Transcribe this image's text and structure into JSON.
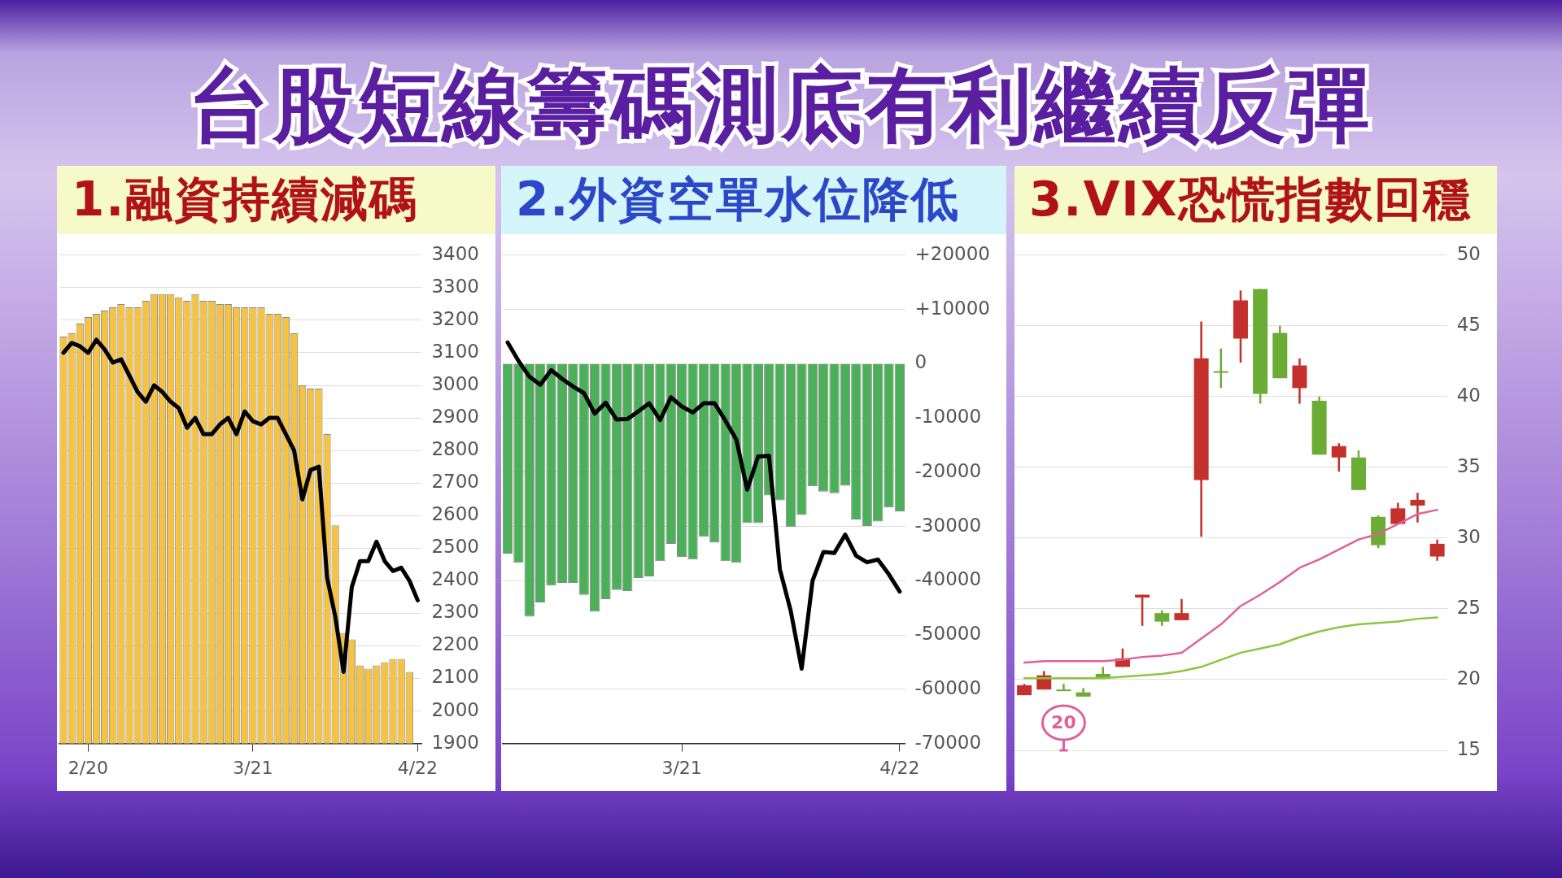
{
  "chart_data": [
    {
      "type": "other",
      "title": "台股短線籌碼測底有利繼續反彈"
    },
    {
      "type": "bar",
      "title": "1.融資持續減碼",
      "categories": [
        null,
        null,
        null,
        "2/20",
        null,
        null,
        null,
        null,
        null,
        null,
        null,
        null,
        null,
        null,
        null,
        null,
        null,
        null,
        null,
        null,
        null,
        null,
        null,
        "3/21",
        null,
        null,
        null,
        null,
        null,
        null,
        null,
        null,
        null,
        null,
        null,
        null,
        null,
        null,
        null,
        null,
        null,
        null,
        null,
        "4/22"
      ],
      "series": [
        {
          "type": "bar",
          "color": "#f5c242",
          "values": [
            3150,
            3160,
            3190,
            3210,
            3220,
            3230,
            3240,
            3250,
            3240,
            3240,
            3260,
            3280,
            3280,
            3280,
            3270,
            3260,
            3280,
            3260,
            3260,
            3250,
            3250,
            3240,
            3240,
            3240,
            3240,
            3220,
            3220,
            3210,
            3160,
            3000,
            2990,
            2990,
            2850,
            2570,
            2240,
            2220,
            2140,
            2130,
            2140,
            2150,
            2160,
            2160,
            2120,
            null
          ]
        },
        {
          "type": "line",
          "color": "#000000",
          "values": [
            3100,
            3130,
            3120,
            3100,
            3140,
            3110,
            3070,
            3080,
            3030,
            2980,
            2950,
            3000,
            2980,
            2950,
            2930,
            2870,
            2900,
            2850,
            2850,
            2880,
            2900,
            2850,
            2920,
            2890,
            2880,
            2900,
            2900,
            2850,
            2800,
            2650,
            2740,
            2750,
            2410,
            2290,
            2120,
            2380,
            2460,
            2460,
            2520,
            2460,
            2430,
            2440,
            2400,
            2340
          ]
        }
      ],
      "ylim": [
        1900,
        3400
      ],
      "yticks": [
        1900,
        2000,
        2100,
        2200,
        2300,
        2400,
        2500,
        2600,
        2700,
        2800,
        2900,
        3000,
        3100,
        3200,
        3300,
        3400
      ],
      "grid": "y"
    },
    {
      "type": "bar",
      "title": "2.外資空單水位降低",
      "categories": [
        null,
        null,
        null,
        null,
        null,
        null,
        null,
        null,
        null,
        null,
        null,
        null,
        null,
        null,
        null,
        null,
        "3/21",
        null,
        null,
        null,
        null,
        null,
        null,
        null,
        null,
        null,
        null,
        null,
        null,
        null,
        null,
        null,
        null,
        null,
        null,
        null,
        "4/22"
      ],
      "series": [
        {
          "type": "bar",
          "color": "#4caf5a",
          "values": [
            -35000,
            -36700,
            -46600,
            -44000,
            -40900,
            -40400,
            -40400,
            -42600,
            -45700,
            -43400,
            -41700,
            -41900,
            -39500,
            -39200,
            -36400,
            -33200,
            -35600,
            -36100,
            -31900,
            -33000,
            -36400,
            -36700,
            -29400,
            -29400,
            -24300,
            -25200,
            -30100,
            -27900,
            -22600,
            -23600,
            -23900,
            -22500,
            -28700,
            -29900,
            -29100,
            -26500,
            -27200
          ]
        },
        {
          "type": "line",
          "color": "#000000",
          "values": [
            3900,
            500,
            -2400,
            -3900,
            -1200,
            -2800,
            -4200,
            -5400,
            -9200,
            -7200,
            -10300,
            -10200,
            -8800,
            -7300,
            -10400,
            -6200,
            -7900,
            -9000,
            -7300,
            -7300,
            -10500,
            -14000,
            -23200,
            -17100,
            -17000,
            -37900,
            -45600,
            -56200,
            -40000,
            -34700,
            -34900,
            -31500,
            -35400,
            -36600,
            -36100,
            -38800,
            -42000
          ]
        }
      ],
      "ylim": [
        -70000,
        20000
      ],
      "yticks": [
        {
          "value": 20000,
          "label": "+20000"
        },
        {
          "value": 10000,
          "label": "+10000"
        },
        0,
        -10000,
        -20000,
        -30000,
        -40000,
        -50000,
        -60000,
        -70000
      ],
      "grid": "y"
    },
    {
      "type": "candlestick",
      "title": "3.VIX恐慌指數回穩",
      "categories": [
        null,
        null,
        null,
        null,
        null,
        null,
        null,
        null,
        null,
        null,
        null,
        null,
        null,
        null,
        null,
        null,
        null,
        null,
        null,
        null,
        null,
        null
      ],
      "ohlc": [
        [
          18.9,
          19.7,
          18.9,
          19.6
        ],
        [
          19.3,
          20.6,
          19.3,
          20.3
        ],
        [
          19.3,
          19.7,
          19.2,
          19.2
        ],
        [
          19.1,
          19.4,
          18.8,
          18.8
        ],
        [
          20.4,
          20.9,
          20.1,
          20.1
        ],
        [
          20.9,
          22.2,
          20.9,
          21.5
        ],
        [
          25.8,
          26.0,
          23.8,
          26.0
        ],
        [
          24.7,
          24.9,
          23.8,
          24.1
        ],
        [
          24.2,
          25.7,
          24.2,
          24.7
        ],
        [
          34.1,
          45.3,
          30.1,
          42.7
        ],
        [
          41.8,
          43.4,
          40.6,
          41.7
        ],
        [
          44.1,
          47.5,
          42.4,
          46.8
        ],
        [
          47.6,
          47.6,
          39.5,
          40.2
        ],
        [
          44.5,
          45.0,
          41.3,
          41.3
        ],
        [
          40.6,
          42.7,
          39.5,
          42.2
        ],
        [
          39.7,
          40.0,
          35.9,
          35.9
        ],
        [
          35.7,
          36.7,
          34.7,
          36.5
        ],
        [
          35.7,
          36.2,
          33.4,
          33.4
        ],
        [
          31.5,
          31.6,
          29.3,
          29.5
        ],
        [
          31.0,
          32.5,
          31.0,
          32.1
        ],
        [
          32.3,
          33.2,
          31.1,
          32.7
        ],
        [
          28.7,
          29.9,
          28.4,
          29.6
        ]
      ],
      "colors": [
        "#c4302b",
        "#c4302b",
        "#6aac34",
        "#6aac34",
        "#6aac34",
        "#c4302b",
        "#c4302b",
        "#6aac34",
        "#c4302b",
        "#c4302b",
        "#6aac34",
        "#c4302b",
        "#6aac34",
        "#6aac34",
        "#c4302b",
        "#6aac34",
        "#c4302b",
        "#6aac34",
        "#6aac34",
        "#c4302b",
        "#c4302b",
        "#c4302b"
      ],
      "series": [
        {
          "type": "line",
          "color": "#e0609a",
          "values": [
            21.2,
            21.3,
            21.3,
            21.3,
            21.3,
            21.4,
            21.6,
            21.7,
            21.9,
            22.9,
            23.9,
            25.2,
            26.0,
            26.9,
            27.9,
            28.5,
            29.2,
            29.9,
            30.3,
            31.0,
            31.7,
            32.0
          ]
        },
        {
          "type": "line",
          "color": "#8cc63f",
          "values": [
            20.1,
            20.1,
            20.1,
            20.1,
            20.1,
            20.2,
            20.3,
            20.4,
            20.6,
            20.9,
            21.4,
            21.9,
            22.2,
            22.5,
            23.0,
            23.4,
            23.7,
            23.9,
            24.0,
            24.1,
            24.3,
            24.4
          ]
        }
      ],
      "annotations": [
        "20"
      ],
      "ylim": [
        15,
        50
      ],
      "yticks": [
        15,
        20,
        25,
        30,
        35,
        40,
        45,
        50
      ],
      "grid": "y",
      "tick_labels": "y"
    }
  ]
}
